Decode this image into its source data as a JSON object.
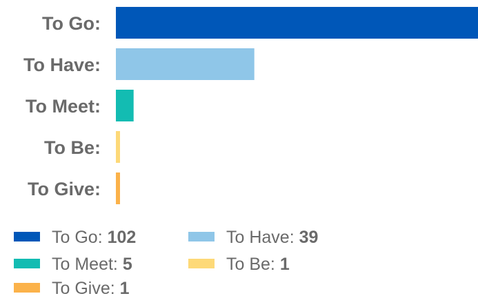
{
  "chart_data": {
    "type": "bar",
    "orientation": "horizontal",
    "categories": [
      "To Go:",
      "To Have:",
      "To Meet:",
      "To Be:",
      "To Give:"
    ],
    "values": [
      102,
      39,
      5,
      1,
      1
    ],
    "colors": [
      "#0057b8",
      "#8fc6e8",
      "#13bcb2",
      "#fdd978",
      "#fbb24a"
    ],
    "grid": false,
    "xlim": [
      0,
      102
    ],
    "legend": {
      "position": "bottom",
      "entries": [
        {
          "label": "To Go:",
          "value": "102"
        },
        {
          "label": "To Have:",
          "value": "39"
        },
        {
          "label": "To Meet:",
          "value": "5"
        },
        {
          "label": "To Be:",
          "value": "1"
        },
        {
          "label": "To Give:",
          "value": "1"
        }
      ]
    }
  }
}
